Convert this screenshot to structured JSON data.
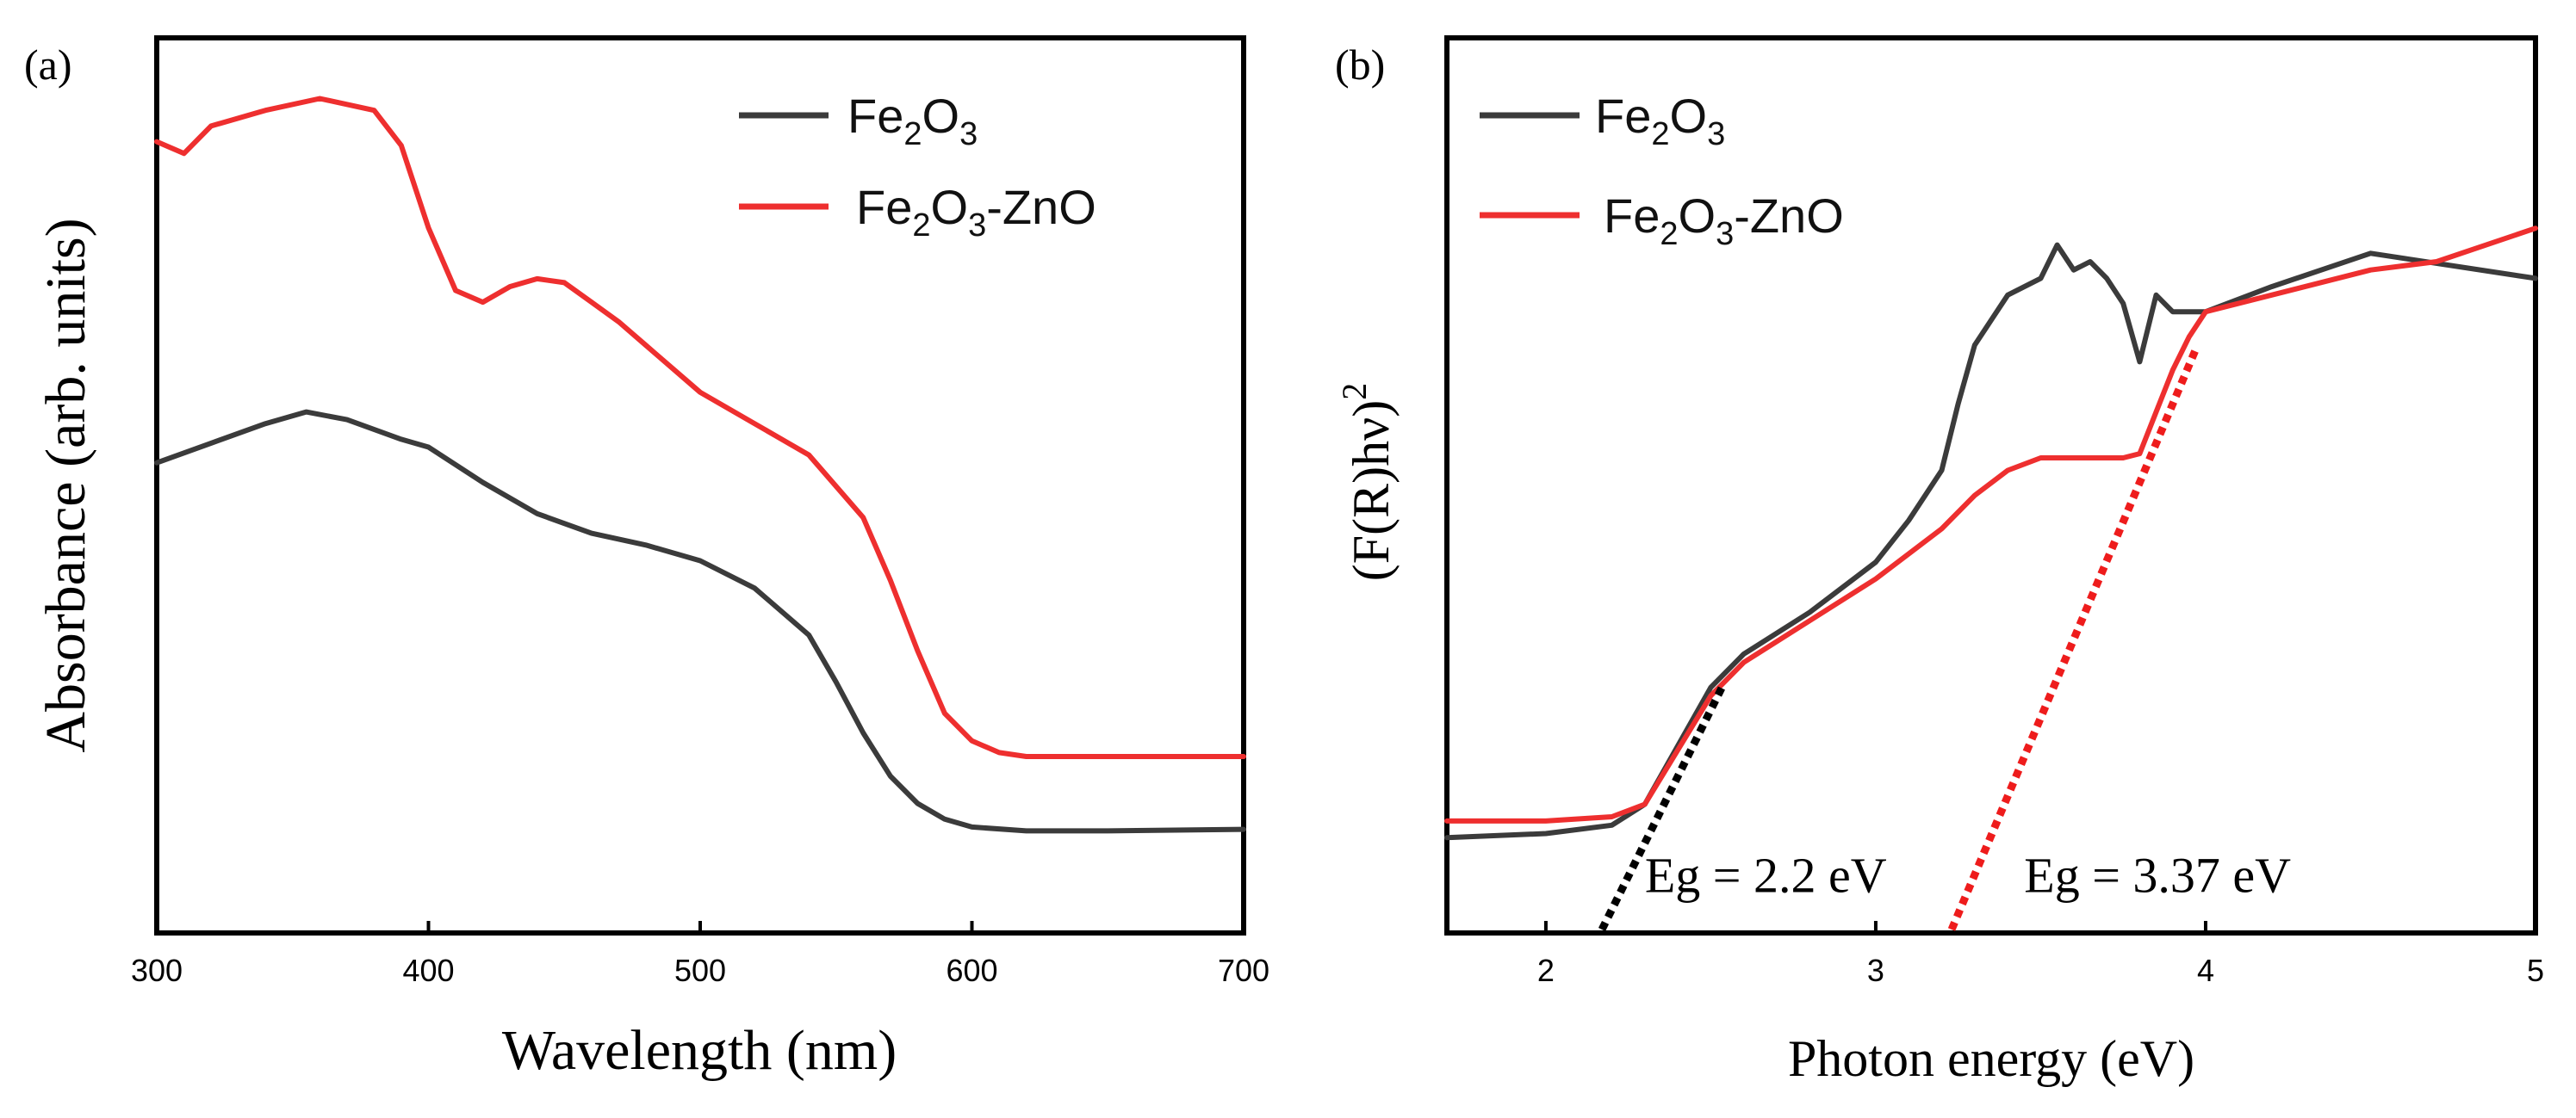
{
  "colors": {
    "fe2o3": "#3b3b3b",
    "fe2o3_zno": "#ee2f2f",
    "axis": "#000000"
  },
  "chart_data": [
    {
      "panel_label": "(a)",
      "type": "line",
      "xlabel": "Wavelength (nm)",
      "ylabel": "Absorbance (arb. units)",
      "xlim": [
        300,
        700
      ],
      "ylim": [
        0,
        1
      ],
      "xticks": [
        "300",
        "400",
        "500",
        "600",
        "700"
      ],
      "legend_position": "top-right",
      "series": [
        {
          "name": "Fe2O3",
          "legend": {
            "main": "Fe",
            "sub1": "2",
            "mid": "O",
            "sub2": "3",
            "tail": ""
          },
          "x": [
            300,
            320,
            340,
            355,
            370,
            390,
            400,
            420,
            440,
            460,
            480,
            500,
            520,
            540,
            550,
            560,
            570,
            580,
            590,
            600,
            620,
            650,
            700
          ],
          "y": [
            0.53,
            0.555,
            0.58,
            0.595,
            0.585,
            0.56,
            0.55,
            0.505,
            0.465,
            0.44,
            0.425,
            0.405,
            0.37,
            0.31,
            0.25,
            0.185,
            0.13,
            0.095,
            0.075,
            0.065,
            0.06,
            0.06,
            0.062
          ]
        },
        {
          "name": "Fe2O3-ZnO",
          "legend": {
            "main": "Fe",
            "sub1": "2",
            "mid": "O",
            "sub2": "3",
            "tail": "-ZnO"
          },
          "x": [
            300,
            310,
            320,
            340,
            360,
            380,
            390,
            400,
            410,
            420,
            430,
            440,
            450,
            460,
            470,
            480,
            500,
            520,
            540,
            560,
            570,
            580,
            590,
            600,
            610,
            620,
            650,
            700
          ],
          "y": [
            0.94,
            0.925,
            0.96,
            0.98,
            0.995,
            0.98,
            0.935,
            0.83,
            0.75,
            0.735,
            0.755,
            0.765,
            0.76,
            0.735,
            0.71,
            0.68,
            0.62,
            0.58,
            0.54,
            0.46,
            0.38,
            0.29,
            0.21,
            0.175,
            0.16,
            0.155,
            0.155,
            0.155
          ]
        }
      ]
    },
    {
      "panel_label": "(b)",
      "type": "line",
      "xlabel": "Photon energy (eV)",
      "ylabel": "(F(R)hν)",
      "ylabel_sup": "2",
      "xlim": [
        1.7,
        5.0
      ],
      "ylim": [
        0,
        1
      ],
      "xticks": [
        "2",
        "3",
        "4",
        "5"
      ],
      "legend_position": "top-left",
      "series": [
        {
          "name": "Fe2O3",
          "legend": {
            "main": "Fe",
            "sub1": "2",
            "mid": "O",
            "sub2": "3",
            "tail": ""
          },
          "x": [
            1.7,
            2.0,
            2.2,
            2.3,
            2.4,
            2.5,
            2.6,
            2.8,
            3.0,
            3.1,
            3.2,
            3.25,
            3.3,
            3.35,
            3.4,
            3.5,
            3.55,
            3.6,
            3.65,
            3.7,
            3.75,
            3.8,
            3.85,
            3.9,
            4.0,
            4.2,
            4.5,
            5.0
          ],
          "y": [
            0.11,
            0.115,
            0.125,
            0.15,
            0.22,
            0.29,
            0.33,
            0.38,
            0.44,
            0.49,
            0.55,
            0.63,
            0.7,
            0.73,
            0.76,
            0.78,
            0.82,
            0.79,
            0.8,
            0.78,
            0.75,
            0.68,
            0.76,
            0.74,
            0.74,
            0.77,
            0.81,
            0.78
          ]
        },
        {
          "name": "Fe2O3-ZnO",
          "legend": {
            "main": "Fe",
            "sub1": "2",
            "mid": "O",
            "sub2": "3",
            "tail": "-ZnO"
          },
          "x": [
            1.7,
            2.0,
            2.2,
            2.3,
            2.4,
            2.5,
            2.6,
            2.8,
            3.0,
            3.2,
            3.3,
            3.4,
            3.5,
            3.6,
            3.7,
            3.75,
            3.8,
            3.85,
            3.9,
            3.95,
            4.0,
            4.2,
            4.5,
            4.7,
            5.0
          ],
          "y": [
            0.13,
            0.13,
            0.135,
            0.15,
            0.215,
            0.28,
            0.32,
            0.37,
            0.42,
            0.48,
            0.52,
            0.55,
            0.565,
            0.565,
            0.565,
            0.565,
            0.57,
            0.62,
            0.67,
            0.71,
            0.74,
            0.76,
            0.79,
            0.8,
            0.84
          ]
        }
      ],
      "fit_lines": [
        {
          "name": "Fe2O3 tangent",
          "x": [
            2.17,
            2.54
          ],
          "y": [
            0.0,
            0.295
          ],
          "color": "#000000"
        },
        {
          "name": "Fe2O3-ZnO tangent",
          "x": [
            3.23,
            3.97
          ],
          "y": [
            0.0,
            0.695
          ],
          "color": "#ee1c1c"
        }
      ],
      "annotations": [
        {
          "text": "Eg = 2.2 eV",
          "x": 2.3,
          "y": 0.045
        },
        {
          "text": "Eg = 3.37 eV",
          "x": 3.45,
          "y": 0.045
        }
      ]
    }
  ]
}
